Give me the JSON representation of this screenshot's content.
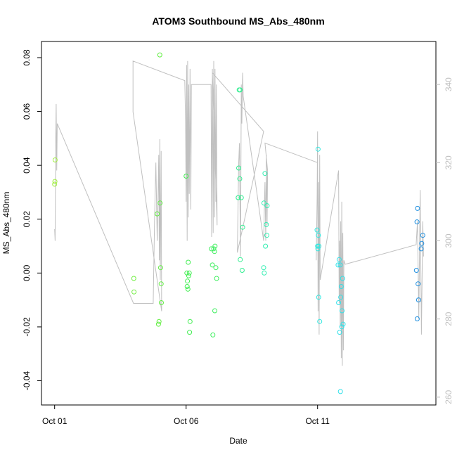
{
  "chart_data": {
    "type": "scatter",
    "title": "ATOM3 Southbound MS_Abs_480nm",
    "xlabel": "Date",
    "ylabel": "MS_Abs_480nm",
    "x_tick_labels": [
      "Oct 01",
      "Oct 06",
      "Oct 11"
    ],
    "x_ticks_day": [
      1,
      6,
      11
    ],
    "xlim_day": [
      0.5,
      15.5
    ],
    "ylim": [
      -0.049,
      0.086
    ],
    "y_ticks": [
      -0.04,
      -0.02,
      0.0,
      0.02,
      0.04,
      0.06,
      0.08
    ],
    "y_tick_labels": [
      "-0.04",
      "-0.02",
      "0.00",
      "0.02",
      "0.04",
      "0.06",
      "0.08"
    ],
    "y2_ticks": [
      260,
      280,
      300,
      320,
      340
    ],
    "y2_tick_labels": [
      "260",
      "280",
      "300",
      "320",
      "340"
    ],
    "y2lim": [
      258,
      351
    ],
    "grid": false,
    "legend": "none",
    "point_colors": {
      "early": "#90ee40",
      "mid": "#40f060",
      "late": "#30f0d8",
      "end": "#20a0e0"
    },
    "line_color": "#c0c0c0",
    "points": [
      {
        "x": 1.02,
        "y": 0.042,
        "c": "#a0ee40"
      },
      {
        "x": 1.01,
        "y": 0.034,
        "c": "#a0ee40"
      },
      {
        "x": 1.0,
        "y": 0.033,
        "c": "#a0ee40"
      },
      {
        "x": 4.01,
        "y": -0.002,
        "c": "#70ee40"
      },
      {
        "x": 4.02,
        "y": -0.007,
        "c": "#70ee40"
      },
      {
        "x": 4.9,
        "y": 0.022,
        "c": "#60ee40"
      },
      {
        "x": 5.0,
        "y": 0.081,
        "c": "#60ee40"
      },
      {
        "x": 5.01,
        "y": 0.026,
        "c": "#60ee40"
      },
      {
        "x": 5.03,
        "y": 0.002,
        "c": "#60ee40"
      },
      {
        "x": 5.05,
        "y": -0.004,
        "c": "#60ee40"
      },
      {
        "x": 5.06,
        "y": -0.011,
        "c": "#60ee40"
      },
      {
        "x": 4.97,
        "y": -0.018,
        "c": "#60ee40"
      },
      {
        "x": 4.95,
        "y": -0.019,
        "c": "#60ee40"
      },
      {
        "x": 6.0,
        "y": 0.036,
        "c": "#40ee50"
      },
      {
        "x": 6.08,
        "y": 0.004,
        "c": "#40ee50"
      },
      {
        "x": 6.03,
        "y": 0.0,
        "c": "#40ee50"
      },
      {
        "x": 6.12,
        "y": 0.0,
        "c": "#40ee50"
      },
      {
        "x": 6.1,
        "y": -0.001,
        "c": "#40ee50"
      },
      {
        "x": 6.05,
        "y": -0.003,
        "c": "#40ee50"
      },
      {
        "x": 6.04,
        "y": -0.005,
        "c": "#40ee50"
      },
      {
        "x": 6.07,
        "y": -0.006,
        "c": "#40ee50"
      },
      {
        "x": 6.15,
        "y": -0.018,
        "c": "#40ee50"
      },
      {
        "x": 6.13,
        "y": -0.022,
        "c": "#40ee50"
      },
      {
        "x": 7.0,
        "y": 0.003,
        "c": "#40ee60"
      },
      {
        "x": 7.1,
        "y": 0.01,
        "c": "#40ee60"
      },
      {
        "x": 7.05,
        "y": 0.009,
        "c": "#40ee60"
      },
      {
        "x": 6.96,
        "y": 0.009,
        "c": "#40ee60"
      },
      {
        "x": 7.08,
        "y": 0.008,
        "c": "#40ee60"
      },
      {
        "x": 7.13,
        "y": 0.002,
        "c": "#40ee60"
      },
      {
        "x": 7.16,
        "y": -0.002,
        "c": "#40ee60"
      },
      {
        "x": 7.09,
        "y": -0.014,
        "c": "#40ee60"
      },
      {
        "x": 7.02,
        "y": -0.023,
        "c": "#40ee60"
      },
      {
        "x": 8.02,
        "y": 0.068,
        "c": "#30ee90"
      },
      {
        "x": 8.05,
        "y": 0.068,
        "c": "#30ee90"
      },
      {
        "x": 8.0,
        "y": 0.039,
        "c": "#30ee90"
      },
      {
        "x": 8.04,
        "y": 0.035,
        "c": "#30ee90"
      },
      {
        "x": 7.98,
        "y": 0.028,
        "c": "#30ee90"
      },
      {
        "x": 8.1,
        "y": 0.028,
        "c": "#30ee90"
      },
      {
        "x": 8.15,
        "y": 0.017,
        "c": "#30ee90"
      },
      {
        "x": 8.06,
        "y": 0.005,
        "c": "#30ee90"
      },
      {
        "x": 8.13,
        "y": 0.001,
        "c": "#30ee90"
      },
      {
        "x": 9.0,
        "y": 0.037,
        "c": "#30eeb0"
      },
      {
        "x": 8.96,
        "y": 0.026,
        "c": "#30eeb0"
      },
      {
        "x": 9.08,
        "y": 0.025,
        "c": "#30eeb0"
      },
      {
        "x": 9.05,
        "y": 0.018,
        "c": "#30eeb0"
      },
      {
        "x": 9.07,
        "y": 0.014,
        "c": "#30eeb0"
      },
      {
        "x": 9.02,
        "y": 0.01,
        "c": "#30eeb0"
      },
      {
        "x": 8.95,
        "y": 0.002,
        "c": "#30eeb0"
      },
      {
        "x": 8.97,
        "y": 0.0,
        "c": "#30eeb0"
      },
      {
        "x": 11.02,
        "y": 0.046,
        "c": "#30e8e0"
      },
      {
        "x": 10.98,
        "y": 0.016,
        "c": "#30e8e0"
      },
      {
        "x": 11.03,
        "y": 0.014,
        "c": "#30e8e0"
      },
      {
        "x": 11.0,
        "y": 0.01,
        "c": "#30e8e0"
      },
      {
        "x": 11.05,
        "y": 0.01,
        "c": "#30e8e0"
      },
      {
        "x": 11.01,
        "y": 0.009,
        "c": "#30e8e0"
      },
      {
        "x": 11.04,
        "y": -0.009,
        "c": "#30e8e0"
      },
      {
        "x": 11.08,
        "y": -0.018,
        "c": "#30e8e0"
      },
      {
        "x": 11.82,
        "y": 0.005,
        "c": "#30e0e8"
      },
      {
        "x": 11.78,
        "y": 0.003,
        "c": "#30e0e8"
      },
      {
        "x": 11.86,
        "y": 0.003,
        "c": "#30e0e8"
      },
      {
        "x": 11.95,
        "y": -0.002,
        "c": "#30e0e8"
      },
      {
        "x": 11.9,
        "y": -0.005,
        "c": "#30e0e8"
      },
      {
        "x": 11.88,
        "y": -0.009,
        "c": "#30e0e8"
      },
      {
        "x": 11.8,
        "y": -0.011,
        "c": "#30e0e8"
      },
      {
        "x": 11.93,
        "y": -0.014,
        "c": "#30e0e8"
      },
      {
        "x": 11.97,
        "y": -0.019,
        "c": "#30e0e8"
      },
      {
        "x": 11.92,
        "y": -0.02,
        "c": "#30e0e8"
      },
      {
        "x": 11.84,
        "y": -0.022,
        "c": "#30e0e8"
      },
      {
        "x": 11.87,
        "y": -0.044,
        "c": "#30e0e8"
      },
      {
        "x": 14.8,
        "y": 0.024,
        "c": "#2090e0"
      },
      {
        "x": 14.78,
        "y": 0.019,
        "c": "#2090e0"
      },
      {
        "x": 15.0,
        "y": 0.014,
        "c": "#2090e0"
      },
      {
        "x": 14.96,
        "y": 0.011,
        "c": "#2090e0"
      },
      {
        "x": 14.94,
        "y": 0.009,
        "c": "#2090e0"
      },
      {
        "x": 14.76,
        "y": 0.001,
        "c": "#2090e0"
      },
      {
        "x": 14.82,
        "y": -0.004,
        "c": "#2090e0"
      },
      {
        "x": 14.84,
        "y": -0.01,
        "c": "#2090e0"
      },
      {
        "x": 14.79,
        "y": -0.017,
        "c": "#2090e0"
      }
    ],
    "line": [
      [
        1.0,
        303
      ],
      [
        1.02,
        300
      ],
      [
        1.04,
        325
      ],
      [
        1.06,
        335
      ],
      [
        1.08,
        318
      ],
      [
        1.1,
        330
      ],
      [
        4.0,
        284
      ],
      [
        4.75,
        284
      ],
      [
        4.8,
        305
      ],
      [
        4.85,
        320
      ],
      [
        4.9,
        300
      ],
      [
        4.93,
        310
      ],
      [
        4.96,
        322
      ],
      [
        4.98,
        295
      ],
      [
        5.0,
        326
      ],
      [
        5.02,
        290
      ],
      [
        5.05,
        323
      ],
      [
        5.07,
        282
      ],
      [
        3.98,
        333
      ],
      [
        3.98,
        346
      ],
      [
        5.95,
        341
      ],
      [
        5.98,
        330
      ],
      [
        6.0,
        310
      ],
      [
        6.02,
        345
      ],
      [
        6.04,
        300
      ],
      [
        6.06,
        346
      ],
      [
        6.08,
        306
      ],
      [
        6.1,
        340
      ],
      [
        6.12,
        312
      ],
      [
        6.15,
        344
      ],
      [
        6.18,
        308
      ],
      [
        6.2,
        340
      ],
      [
        6.95,
        340
      ],
      [
        6.97,
        301
      ],
      [
        7.0,
        344
      ],
      [
        7.03,
        302
      ],
      [
        7.05,
        346
      ],
      [
        7.08,
        306
      ],
      [
        7.1,
        344
      ],
      [
        7.13,
        310
      ],
      [
        7.15,
        340
      ],
      [
        7.18,
        304
      ],
      [
        7.0,
        343
      ],
      [
        8.95,
        328
      ],
      [
        7.95,
        297
      ],
      [
        8.0,
        320
      ],
      [
        8.03,
        325
      ],
      [
        8.05,
        308
      ],
      [
        8.07,
        296
      ],
      [
        8.1,
        340
      ],
      [
        8.12,
        330
      ],
      [
        8.15,
        343
      ],
      [
        8.17,
        337
      ],
      [
        8.95,
        300
      ],
      [
        8.98,
        310
      ],
      [
        9.0,
        315
      ],
      [
        9.03,
        300
      ],
      [
        9.05,
        322
      ],
      [
        9.08,
        304
      ],
      [
        9.1,
        318
      ],
      [
        9.0,
        325
      ],
      [
        11.0,
        320
      ],
      [
        10.95,
        295
      ],
      [
        10.98,
        310
      ],
      [
        11.0,
        328
      ],
      [
        11.02,
        282
      ],
      [
        11.04,
        315
      ],
      [
        11.06,
        276
      ],
      [
        11.08,
        322
      ],
      [
        11.1,
        290
      ],
      [
        11.8,
        318
      ],
      [
        11.82,
        284
      ],
      [
        11.84,
        300
      ],
      [
        11.86,
        278
      ],
      [
        11.88,
        305
      ],
      [
        11.9,
        270
      ],
      [
        11.92,
        310
      ],
      [
        11.94,
        268
      ],
      [
        11.96,
        302
      ],
      [
        11.98,
        272
      ],
      [
        12.0,
        295
      ],
      [
        12.05,
        294
      ],
      [
        14.75,
        299
      ],
      [
        14.8,
        305
      ],
      [
        14.85,
        280
      ],
      [
        14.9,
        313
      ],
      [
        14.95,
        276
      ],
      [
        15.0,
        305
      ],
      [
        15.03,
        296
      ]
    ]
  }
}
